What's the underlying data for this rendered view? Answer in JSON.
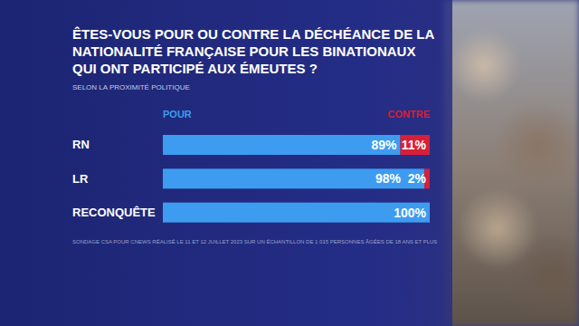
{
  "chart_data": {
    "type": "bar",
    "orientation": "horizontal",
    "stacked": true,
    "title": "ÊTES-VOUS POUR OU CONTRE LA DÉCHÉANCE DE LA NATIONALITÉ FRANÇAISE POUR LES BINATIONAUX QUI ONT PARTICIPÉ AUX ÉMEUTES ?",
    "subtitle": "SELON LA PROXIMITÉ POLITIQUE",
    "source": "SONDAGE CSA POUR CNEWS RÉALISÉ LE 11 ET 12 JUILLET 2023 SUR UN ÉCHANTILLON DE 1 015 PERSONNES ÂGÉES DE 18 ANS ET PLUS",
    "categories": [
      "RN",
      "LR",
      "RECONQUÊTE"
    ],
    "series": [
      {
        "name": "POUR",
        "color": "#3d9cf0",
        "values": [
          89,
          98,
          100
        ],
        "value_labels": [
          "89%",
          "98%",
          "100%"
        ]
      },
      {
        "name": "CONTRE",
        "color": "#d62038",
        "values": [
          11,
          2,
          0
        ],
        "value_labels": [
          "11%",
          "2%",
          null
        ]
      }
    ],
    "xlim": [
      0,
      100
    ],
    "data_labels": true,
    "tick_labels": "y",
    "legend": "top"
  }
}
